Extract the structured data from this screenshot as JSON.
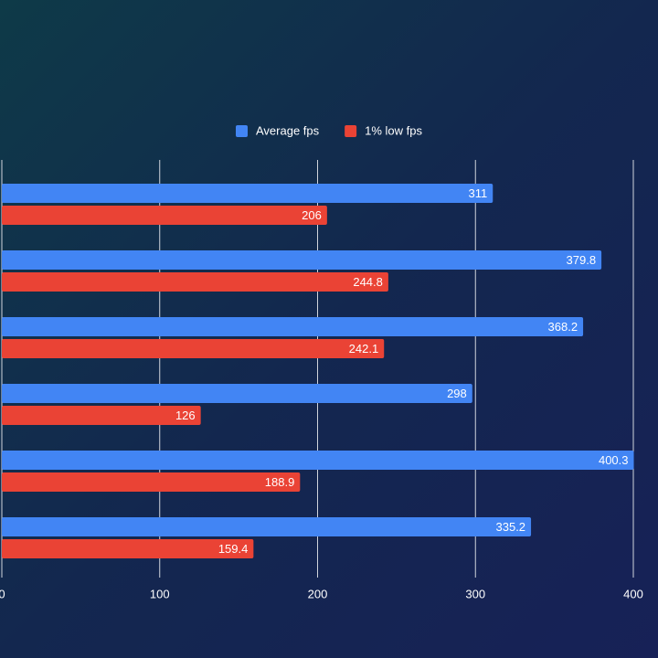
{
  "chart_data": {
    "type": "hbar",
    "categories": [
      null,
      null,
      null,
      null,
      null,
      null
    ],
    "series": [
      {
        "name": "Average fps",
        "color": "#4285f4",
        "values": [
          311,
          379.8,
          368.2,
          298,
          400.3,
          335.2
        ]
      },
      {
        "name": "1% low fps",
        "color": "#ea4335",
        "values": [
          206,
          244.8,
          242.1,
          126,
          188.9,
          159.4
        ]
      }
    ],
    "xlim": [
      0,
      400
    ],
    "xticks": [
      0,
      100,
      200,
      300,
      400
    ],
    "grid": true,
    "legend": "top"
  }
}
